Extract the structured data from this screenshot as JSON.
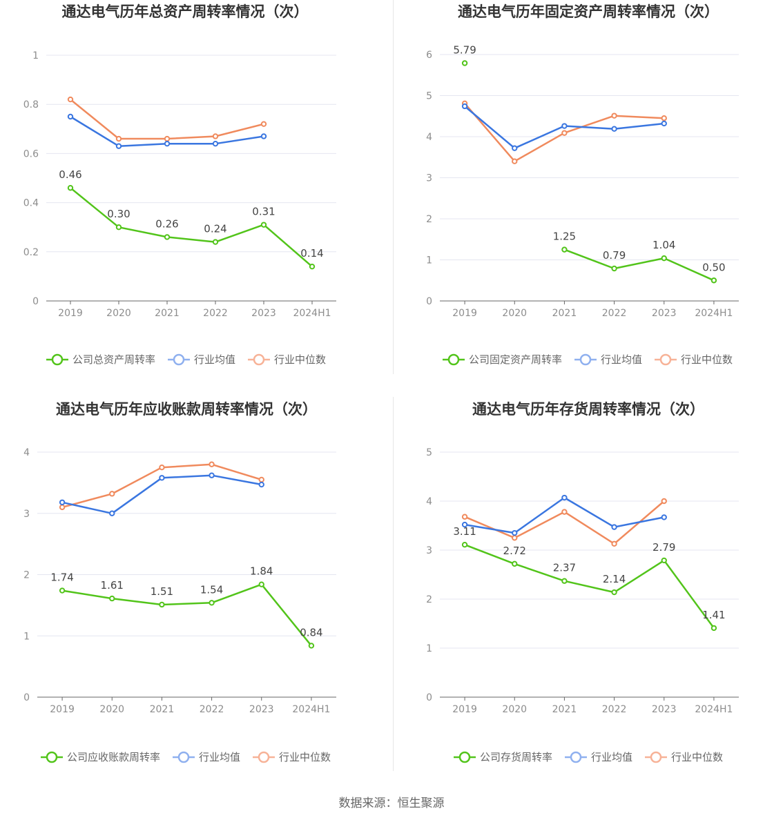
{
  "colors": {
    "company": "#52c41a",
    "avg": "#3a76e0",
    "median": "#f08a5d",
    "avg_legend": "#8fb0ef",
    "median_legend": "#f7b297",
    "grid": "#e4e6f0",
    "axis": "#666666"
  },
  "source": "数据来源：恒生聚源",
  "chart_data": [
    {
      "type": "line",
      "title": "通达电气历年总资产周转率情况（次）",
      "categories": [
        "2019",
        "2020",
        "2021",
        "2022",
        "2023",
        "2024H1"
      ],
      "ylim": [
        0,
        1
      ],
      "yticks": [
        0,
        0.2,
        0.4,
        0.6,
        0.8,
        1
      ],
      "ytick_labels": [
        "0",
        "0.2",
        "0.4",
        "0.6",
        "0.8",
        "1"
      ],
      "grid": true,
      "legend_position": "bottom",
      "series": [
        {
          "name": "公司总资产周转率",
          "role": "company",
          "values": [
            0.46,
            0.3,
            0.26,
            0.24,
            0.31,
            0.14
          ],
          "labels": [
            "0.46",
            "0.30",
            "0.26",
            "0.24",
            "0.31",
            "0.14"
          ]
        },
        {
          "name": "行业均值",
          "role": "avg",
          "values": [
            0.75,
            0.63,
            0.64,
            0.64,
            0.67,
            null
          ]
        },
        {
          "name": "行业中位数",
          "role": "median",
          "values": [
            0.82,
            0.66,
            0.66,
            0.67,
            0.72,
            null
          ]
        }
      ]
    },
    {
      "type": "line",
      "title": "通达电气历年固定资产周转率情况（次）",
      "categories": [
        "2019",
        "2020",
        "2021",
        "2022",
        "2023",
        "2024H1"
      ],
      "ylim": [
        0,
        6
      ],
      "yticks": [
        0,
        1,
        2,
        3,
        4,
        5,
        6
      ],
      "ytick_labels": [
        "0",
        "1",
        "2",
        "3",
        "4",
        "5",
        "6"
      ],
      "grid": true,
      "legend_position": "bottom",
      "series": [
        {
          "name": "公司固定资产周转率",
          "role": "company",
          "values": [
            5.79,
            null,
            1.25,
            0.79,
            1.04,
            0.5
          ],
          "labels": [
            "5.79",
            "",
            "1.25",
            "0.79",
            "1.04",
            "0.50"
          ]
        },
        {
          "name": "行业均值",
          "role": "avg",
          "values": [
            4.74,
            3.72,
            4.26,
            4.19,
            4.32,
            null
          ]
        },
        {
          "name": "行业中位数",
          "role": "median",
          "values": [
            4.81,
            3.4,
            4.09,
            4.51,
            4.45,
            null
          ]
        }
      ]
    },
    {
      "type": "line",
      "title": "通达电气历年应收账款周转率情况（次）",
      "categories": [
        "2019",
        "2020",
        "2021",
        "2022",
        "2023",
        "2024H1"
      ],
      "ylim": [
        0,
        4
      ],
      "yticks": [
        0,
        1,
        2,
        3,
        4
      ],
      "ytick_labels": [
        "0",
        "1",
        "2",
        "3",
        "4"
      ],
      "grid": true,
      "legend_position": "bottom",
      "series": [
        {
          "name": "公司应收账款周转率",
          "role": "company",
          "values": [
            1.74,
            1.61,
            1.51,
            1.54,
            1.84,
            0.84
          ],
          "labels": [
            "1.74",
            "1.61",
            "1.51",
            "1.54",
            "1.84",
            "0.84"
          ]
        },
        {
          "name": "行业均值",
          "role": "avg",
          "values": [
            3.18,
            3.0,
            3.58,
            3.62,
            3.47,
            null
          ]
        },
        {
          "name": "行业中位数",
          "role": "median",
          "values": [
            3.1,
            3.32,
            3.75,
            3.8,
            3.55,
            null
          ]
        }
      ]
    },
    {
      "type": "line",
      "title": "通达电气历年存货周转率情况（次）",
      "categories": [
        "2019",
        "2020",
        "2021",
        "2022",
        "2023",
        "2024H1"
      ],
      "ylim": [
        0,
        5
      ],
      "yticks": [
        0,
        1,
        2,
        3,
        4,
        5
      ],
      "ytick_labels": [
        "0",
        "1",
        "2",
        "3",
        "4",
        "5"
      ],
      "grid": true,
      "legend_position": "bottom",
      "series": [
        {
          "name": "公司存货周转率",
          "role": "company",
          "values": [
            3.11,
            2.72,
            2.37,
            2.14,
            2.79,
            1.41
          ],
          "labels": [
            "3.11",
            "2.72",
            "2.37",
            "2.14",
            "2.79",
            "1.41"
          ]
        },
        {
          "name": "行业均值",
          "role": "avg",
          "values": [
            3.52,
            3.35,
            4.07,
            3.47,
            3.67,
            null
          ]
        },
        {
          "name": "行业中位数",
          "role": "median",
          "values": [
            3.68,
            3.25,
            3.78,
            3.13,
            4.0,
            null
          ]
        }
      ]
    }
  ]
}
